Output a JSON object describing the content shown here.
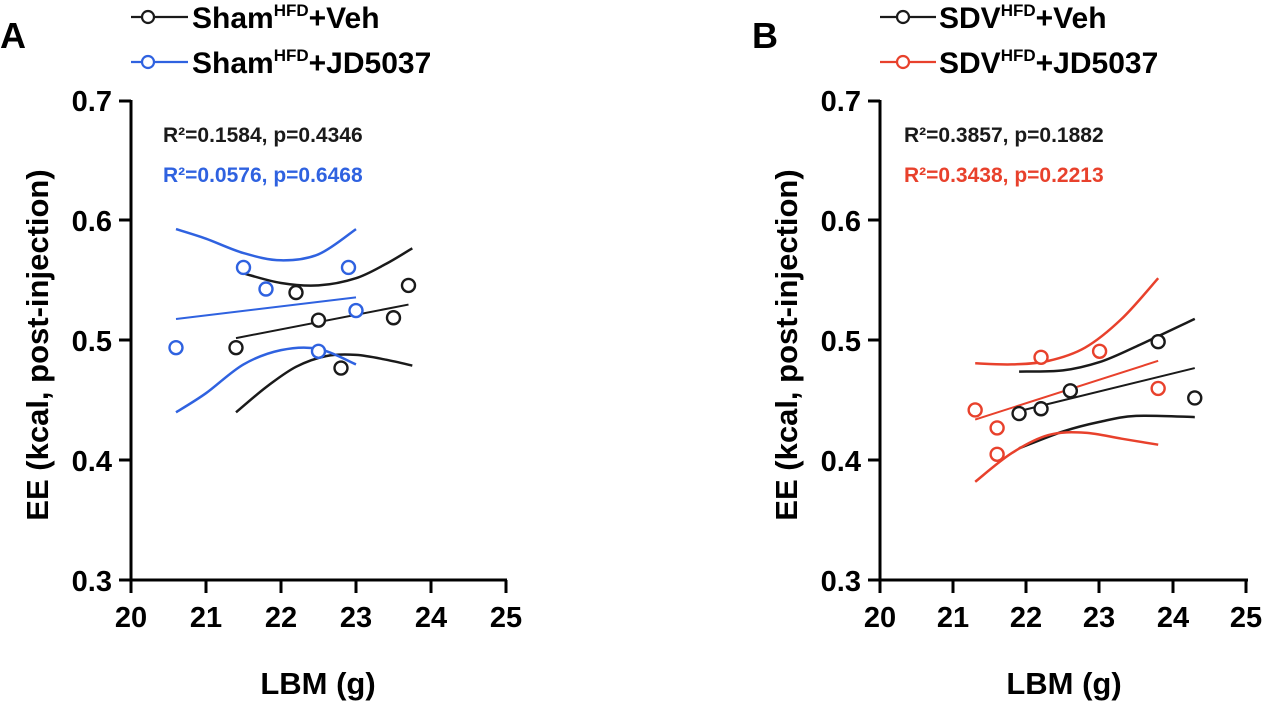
{
  "figure": {
    "background": "#ffffff",
    "axis_color": "#000000"
  },
  "chart_data": [
    {
      "type": "scatter",
      "panel_label": "A",
      "xlabel": "LBM (g)",
      "ylabel": "EE (kcal, post-injection)",
      "xlim": [
        20,
        25
      ],
      "ylim": [
        0.3,
        0.7
      ],
      "xticks": [
        "20",
        "21",
        "22",
        "23",
        "24",
        "25"
      ],
      "yticks": [
        "0.3",
        "0.4",
        "0.5",
        "0.6",
        "0.7"
      ],
      "legend_position": "top",
      "series": [
        {
          "legend_base": "Sham",
          "legend_sup": "HFD",
          "legend_suffix": "+Veh",
          "color": "#1a1a1a",
          "points": [
            [
              21.4,
              0.494
            ],
            [
              22.2,
              0.54
            ],
            [
              22.5,
              0.517
            ],
            [
              22.8,
              0.477
            ],
            [
              23.5,
              0.519
            ],
            [
              23.7,
              0.546
            ]
          ],
          "fit": [
            [
              21.4,
              0.502
            ],
            [
              23.7,
              0.53
            ]
          ],
          "ci_upper": [
            [
              21.5,
              0.556
            ],
            [
              22.0,
              0.548
            ],
            [
              22.5,
              0.546
            ],
            [
              23.0,
              0.552
            ],
            [
              23.4,
              0.564
            ],
            [
              23.75,
              0.577
            ]
          ],
          "ci_lower": [
            [
              21.4,
              0.44
            ],
            [
              21.8,
              0.461
            ],
            [
              22.2,
              0.478
            ],
            [
              22.6,
              0.487
            ],
            [
              23.0,
              0.488
            ],
            [
              23.4,
              0.484
            ],
            [
              23.75,
              0.479
            ]
          ],
          "stat_text": "R²=0.1584, p=0.4346"
        },
        {
          "legend_base": "Sham",
          "legend_sup": "HFD",
          "legend_suffix": "+JD5037",
          "color": "#2f62e0",
          "points": [
            [
              20.6,
              0.494
            ],
            [
              21.5,
              0.561
            ],
            [
              21.8,
              0.543
            ],
            [
              22.5,
              0.491
            ],
            [
              22.9,
              0.561
            ],
            [
              23.0,
              0.525
            ]
          ],
          "fit": [
            [
              20.6,
              0.518
            ],
            [
              23.0,
              0.536
            ]
          ],
          "ci_upper": [
            [
              20.6,
              0.593
            ],
            [
              21.0,
              0.585
            ],
            [
              21.5,
              0.573
            ],
            [
              22.0,
              0.567
            ],
            [
              22.5,
              0.572
            ],
            [
              23.0,
              0.593
            ]
          ],
          "ci_lower": [
            [
              20.6,
              0.44
            ],
            [
              21.0,
              0.456
            ],
            [
              21.5,
              0.48
            ],
            [
              22.0,
              0.492
            ],
            [
              22.5,
              0.493
            ],
            [
              23.0,
              0.48
            ]
          ],
          "stat_text": "R²=0.0576, p=0.6468"
        }
      ]
    },
    {
      "type": "scatter",
      "panel_label": "B",
      "xlabel": "LBM (g)",
      "ylabel": "EE (kcal, post-injection)",
      "xlim": [
        20,
        25
      ],
      "ylim": [
        0.3,
        0.7
      ],
      "xticks": [
        "20",
        "21",
        "22",
        "23",
        "24",
        "25"
      ],
      "yticks": [
        "0.3",
        "0.4",
        "0.5",
        "0.6",
        "0.7"
      ],
      "legend_position": "top",
      "series": [
        {
          "legend_base": "SDV",
          "legend_sup": "HFD",
          "legend_suffix": "+Veh",
          "color": "#1a1a1a",
          "points": [
            [
              21.9,
              0.439
            ],
            [
              22.2,
              0.443
            ],
            [
              22.6,
              0.458
            ],
            [
              23.8,
              0.499
            ],
            [
              24.3,
              0.452
            ]
          ],
          "fit": [
            [
              21.9,
              0.441
            ],
            [
              24.3,
              0.477
            ]
          ],
          "ci_upper": [
            [
              21.9,
              0.474
            ],
            [
              22.5,
              0.475
            ],
            [
              23.0,
              0.482
            ],
            [
              23.5,
              0.495
            ],
            [
              24.3,
              0.518
            ]
          ],
          "ci_lower": [
            [
              21.9,
              0.41
            ],
            [
              22.5,
              0.424
            ],
            [
              23.0,
              0.432
            ],
            [
              23.5,
              0.437
            ],
            [
              24.3,
              0.436
            ]
          ],
          "stat_text": "R²=0.3857, p=0.1882"
        },
        {
          "legend_base": "SDV",
          "legend_sup": "HFD",
          "legend_suffix": "+JD5037",
          "color": "#e8412c",
          "points": [
            [
              21.3,
              0.442
            ],
            [
              21.6,
              0.427
            ],
            [
              21.6,
              0.405
            ],
            [
              22.2,
              0.486
            ],
            [
              23.0,
              0.491
            ],
            [
              23.8,
              0.46
            ]
          ],
          "fit": [
            [
              21.3,
              0.434
            ],
            [
              23.8,
              0.483
            ]
          ],
          "ci_upper": [
            [
              21.3,
              0.481
            ],
            [
              21.8,
              0.48
            ],
            [
              22.3,
              0.483
            ],
            [
              22.8,
              0.494
            ],
            [
              23.3,
              0.518
            ],
            [
              23.8,
              0.552
            ]
          ],
          "ci_lower": [
            [
              21.3,
              0.382
            ],
            [
              21.8,
              0.406
            ],
            [
              22.3,
              0.421
            ],
            [
              22.8,
              0.423
            ],
            [
              23.3,
              0.418
            ],
            [
              23.8,
              0.413
            ]
          ],
          "stat_text": "R²=0.3438, p=0.2213"
        }
      ]
    }
  ]
}
